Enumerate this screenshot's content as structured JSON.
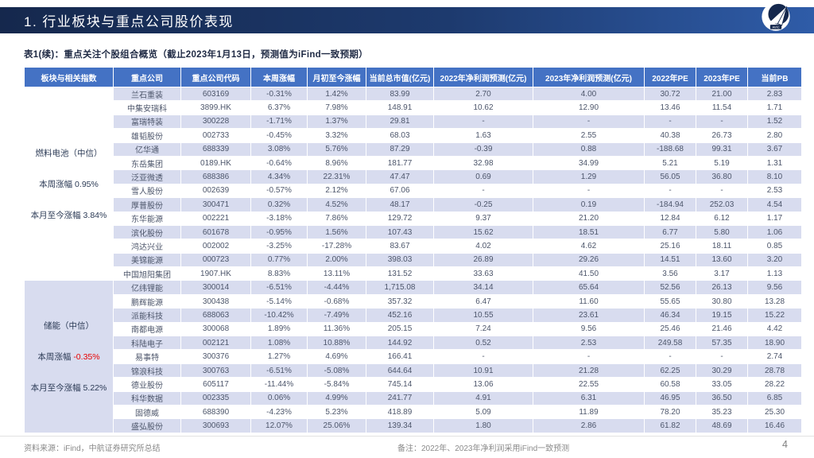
{
  "banner": {
    "title": "1. 行业板块与重点公司股价表现",
    "logo_text": "AVIC"
  },
  "caption": "表1(续)：重点关注个股组合概览（截止2023年1月13日，预测值为iFind一致预期）",
  "colors": {
    "banner_dark": "#15284D",
    "banner_light": "#2F5CA8",
    "header_blue": "#4472C4",
    "stripe": "#D8DCEF",
    "negative_red": "#E80000",
    "cell_text": "#4D566B"
  },
  "table": {
    "columns": [
      "板块与相关指数",
      "重点公司",
      "重点公司代码",
      "本周涨幅",
      "月初至今涨幅",
      "当前总市值(亿元)",
      "2022年净利润预测(亿元)",
      "2023年净利润预测(亿元)",
      "2022年PE",
      "2023年PE",
      "当前PB"
    ],
    "groups": [
      {
        "sector": "燃料电池（中信）",
        "week": {
          "label": "本周涨幅",
          "value": "0.95%"
        },
        "month": {
          "label": "本月至今涨幅",
          "value": "3.84%"
        },
        "panel_shaded": false,
        "rows": [
          {
            "company": "兰石重装",
            "code": "603169",
            "week": "-0.31%",
            "month": "1.42%",
            "cap": "83.99",
            "np2022": "2.70",
            "np2023": "4.00",
            "pe2022": "30.72",
            "pe2023": "21.00",
            "pb": "2.83"
          },
          {
            "company": "中集安瑞科",
            "code": "3899.HK",
            "week": "6.37%",
            "month": "7.98%",
            "cap": "148.91",
            "np2022": "10.62",
            "np2023": "12.90",
            "pe2022": "13.46",
            "pe2023": "11.54",
            "pb": "1.71"
          },
          {
            "company": "富瑞特装",
            "code": "300228",
            "week": "-1.71%",
            "month": "1.37%",
            "cap": "29.81",
            "np2022": "-",
            "np2023": "-",
            "pe2022": "-",
            "pe2023": "-",
            "pb": "1.52"
          },
          {
            "company": "雄韬股份",
            "code": "002733",
            "week": "-0.45%",
            "month": "3.32%",
            "cap": "68.03",
            "np2022": "1.63",
            "np2023": "2.55",
            "pe2022": "40.38",
            "pe2023": "26.73",
            "pb": "2.80"
          },
          {
            "company": "亿华通",
            "code": "688339",
            "week": "3.08%",
            "month": "5.76%",
            "cap": "87.29",
            "np2022": "-0.39",
            "np2023": "0.88",
            "pe2022": "-188.68",
            "pe2023": "99.31",
            "pb": "3.67"
          },
          {
            "company": "东岳集团",
            "code": "0189.HK",
            "week": "-0.64%",
            "month": "8.96%",
            "cap": "181.77",
            "np2022": "32.98",
            "np2023": "34.99",
            "pe2022": "5.21",
            "pe2023": "5.19",
            "pb": "1.31"
          },
          {
            "company": "泛亚微透",
            "code": "688386",
            "week": "4.34%",
            "month": "22.31%",
            "cap": "47.47",
            "np2022": "0.69",
            "np2023": "1.29",
            "pe2022": "56.05",
            "pe2023": "36.80",
            "pb": "8.10"
          },
          {
            "company": "雪人股份",
            "code": "002639",
            "week": "-0.57%",
            "month": "2.12%",
            "cap": "67.06",
            "np2022": "-",
            "np2023": "-",
            "pe2022": "-",
            "pe2023": "-",
            "pb": "2.53"
          },
          {
            "company": "厚普股份",
            "code": "300471",
            "week": "0.32%",
            "month": "4.52%",
            "cap": "48.17",
            "np2022": "-0.25",
            "np2023": "0.19",
            "pe2022": "-184.94",
            "pe2023": "252.03",
            "pb": "4.54"
          },
          {
            "company": "东华能源",
            "code": "002221",
            "week": "-3.18%",
            "month": "7.86%",
            "cap": "129.72",
            "np2022": "9.37",
            "np2023": "21.20",
            "pe2022": "12.84",
            "pe2023": "6.12",
            "pb": "1.17"
          },
          {
            "company": "滨化股份",
            "code": "601678",
            "week": "-0.95%",
            "month": "1.56%",
            "cap": "107.43",
            "np2022": "15.62",
            "np2023": "18.51",
            "pe2022": "6.77",
            "pe2023": "5.80",
            "pb": "1.06"
          },
          {
            "company": "鸿达兴业",
            "code": "002002",
            "week": "-3.25%",
            "month": "-17.28%",
            "cap": "83.67",
            "np2022": "4.02",
            "np2023": "4.62",
            "pe2022": "25.16",
            "pe2023": "18.11",
            "pb": "0.85"
          },
          {
            "company": "美锦能源",
            "code": "000723",
            "week": "0.77%",
            "month": "2.00%",
            "cap": "398.03",
            "np2022": "26.89",
            "np2023": "29.26",
            "pe2022": "14.51",
            "pe2023": "13.60",
            "pb": "3.20"
          },
          {
            "company": "中国旭阳集团",
            "code": "1907.HK",
            "week": "8.83%",
            "month": "13.11%",
            "cap": "131.52",
            "np2022": "33.63",
            "np2023": "41.50",
            "pe2022": "3.56",
            "pe2023": "3.17",
            "pb": "1.13"
          }
        ]
      },
      {
        "sector": "储能（中信）",
        "week": {
          "label": "本周涨幅",
          "value": "-0.35%"
        },
        "month": {
          "label": "本月至今涨幅",
          "value": "5.22%"
        },
        "panel_shaded": true,
        "rows": [
          {
            "company": "亿纬锂能",
            "code": "300014",
            "week": "-6.51%",
            "month": "-4.44%",
            "cap": "1,715.08",
            "np2022": "34.14",
            "np2023": "65.64",
            "pe2022": "52.56",
            "pe2023": "26.13",
            "pb": "9.56"
          },
          {
            "company": "鹏辉能源",
            "code": "300438",
            "week": "-5.14%",
            "month": "-0.68%",
            "cap": "357.32",
            "np2022": "6.47",
            "np2023": "11.60",
            "pe2022": "55.65",
            "pe2023": "30.80",
            "pb": "13.28"
          },
          {
            "company": "派能科技",
            "code": "688063",
            "week": "-10.42%",
            "month": "-7.49%",
            "cap": "452.16",
            "np2022": "10.55",
            "np2023": "23.61",
            "pe2022": "46.34",
            "pe2023": "19.15",
            "pb": "15.22"
          },
          {
            "company": "南都电源",
            "code": "300068",
            "week": "1.89%",
            "month": "11.36%",
            "cap": "205.15",
            "np2022": "7.24",
            "np2023": "9.56",
            "pe2022": "25.46",
            "pe2023": "21.46",
            "pb": "4.42"
          },
          {
            "company": "科陆电子",
            "code": "002121",
            "week": "1.08%",
            "month": "10.88%",
            "cap": "144.92",
            "np2022": "0.52",
            "np2023": "2.53",
            "pe2022": "249.58",
            "pe2023": "57.35",
            "pb": "18.90"
          },
          {
            "company": "易事特",
            "code": "300376",
            "week": "1.27%",
            "month": "4.69%",
            "cap": "166.41",
            "np2022": "-",
            "np2023": "-",
            "pe2022": "-",
            "pe2023": "-",
            "pb": "2.74"
          },
          {
            "company": "锦浪科技",
            "code": "300763",
            "week": "-6.51%",
            "month": "-5.08%",
            "cap": "644.64",
            "np2022": "10.91",
            "np2023": "21.28",
            "pe2022": "62.25",
            "pe2023": "30.29",
            "pb": "28.78"
          },
          {
            "company": "德业股份",
            "code": "605117",
            "week": "-11.44%",
            "month": "-5.84%",
            "cap": "745.14",
            "np2022": "13.06",
            "np2023": "22.55",
            "pe2022": "60.58",
            "pe2023": "33.05",
            "pb": "28.22"
          },
          {
            "company": "科华数据",
            "code": "002335",
            "week": "0.06%",
            "month": "4.99%",
            "cap": "241.77",
            "np2022": "4.91",
            "np2023": "6.31",
            "pe2022": "46.95",
            "pe2023": "36.50",
            "pb": "6.85"
          },
          {
            "company": "固德威",
            "code": "688390",
            "week": "-4.23%",
            "month": "5.23%",
            "cap": "418.89",
            "np2022": "5.09",
            "np2023": "11.89",
            "pe2022": "78.20",
            "pe2023": "35.23",
            "pb": "25.30"
          },
          {
            "company": "盛弘股份",
            "code": "300693",
            "week": "12.07%",
            "month": "25.06%",
            "cap": "139.34",
            "np2022": "1.80",
            "np2023": "2.86",
            "pe2022": "61.82",
            "pe2023": "48.69",
            "pb": "16.46"
          }
        ]
      }
    ]
  },
  "footer": {
    "source": "资料来源：iFind，中航证券研究所总结",
    "note": "备注：2022年、2023年净利润采用iFind一致预测",
    "page": "4"
  }
}
